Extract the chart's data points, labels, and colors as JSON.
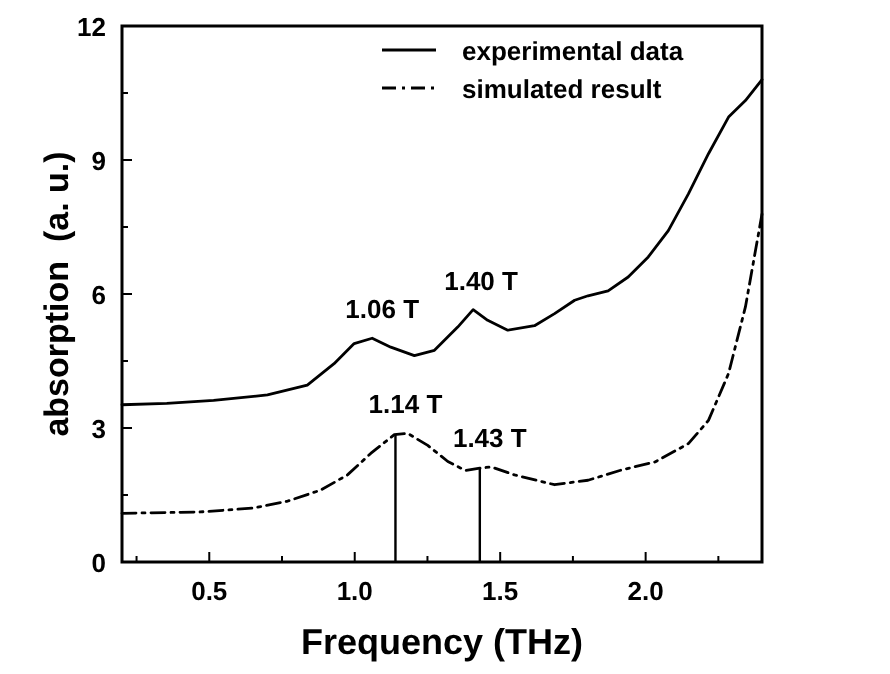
{
  "chart_data": {
    "type": "line",
    "xlabel": "Frequency (THz)",
    "ylabel": "absorption  (a. u.)",
    "xlim": [
      0.2,
      2.4
    ],
    "ylim": [
      0,
      12
    ],
    "xticks": [
      {
        "value": 0.25,
        "label": null
      },
      0.5,
      {
        "value": 0.75,
        "label": null
      },
      {
        "value": 1,
        "label": "1.0"
      },
      {
        "value": 1.25,
        "label": null
      },
      1.5,
      {
        "value": 1.75,
        "label": null
      },
      {
        "value": 2,
        "label": "2.0"
      },
      {
        "value": 2.25,
        "label": null
      }
    ],
    "yticks": [
      0,
      {
        "value": 1.5,
        "label": null
      },
      3,
      {
        "value": 4.5,
        "label": null
      },
      6,
      {
        "value": 7.5,
        "label": null
      },
      9,
      {
        "value": 10.5,
        "label": null
      },
      12
    ],
    "grid": false,
    "legend": "top right",
    "marker": "none",
    "series": [
      {
        "name": "experimental data",
        "color": "#000000",
        "line_style": "solid",
        "x": [
          0.2,
          0.354,
          0.515,
          0.7,
          0.837,
          0.929,
          0.998,
          1.06,
          1.124,
          1.205,
          1.274,
          1.354,
          1.407,
          1.457,
          1.526,
          1.618,
          1.687,
          1.756,
          1.802,
          1.871,
          1.94,
          2.009,
          2.078,
          2.147,
          2.216,
          2.285,
          2.343,
          2.4
        ],
        "values": [
          3.52,
          3.55,
          3.62,
          3.74,
          3.96,
          4.44,
          4.89,
          5.01,
          4.81,
          4.62,
          4.74,
          5.26,
          5.65,
          5.41,
          5.19,
          5.29,
          5.56,
          5.86,
          5.96,
          6.07,
          6.38,
          6.83,
          7.42,
          8.24,
          9.14,
          9.96,
          10.33,
          10.8
        ]
      },
      {
        "name": "simulated result",
        "color": "#000000",
        "line_style": "dashdot",
        "x": [
          0.2,
          0.469,
          0.653,
          0.768,
          0.883,
          0.975,
          1.055,
          1.136,
          1.182,
          1.251,
          1.32,
          1.38,
          1.43,
          1.469,
          1.549,
          1.687,
          1.802,
          1.917,
          2.032,
          2.147,
          2.216,
          2.285,
          2.343,
          2.4
        ],
        "values": [
          1.09,
          1.12,
          1.21,
          1.36,
          1.61,
          1.95,
          2.43,
          2.85,
          2.88,
          2.61,
          2.25,
          2.05,
          2.1,
          2.13,
          1.95,
          1.73,
          1.83,
          2.06,
          2.24,
          2.65,
          3.17,
          4.22,
          5.71,
          7.79
        ]
      },
      {
        "type": "bar",
        "color": "#000000",
        "x": [
          1.14,
          1.43
        ],
        "values": [
          2.85,
          2.1
        ]
      }
    ],
    "annotations": [
      {
        "text": "1.06 T",
        "x": 1.06,
        "y": 5.01
      },
      {
        "text": "1.40 T",
        "x": 1.4,
        "y": 5.65
      },
      {
        "text": "1.14 T",
        "x": 1.14,
        "y": 2.88
      },
      {
        "text": "1.43 T",
        "x": 1.43,
        "y": 2.13
      }
    ]
  }
}
